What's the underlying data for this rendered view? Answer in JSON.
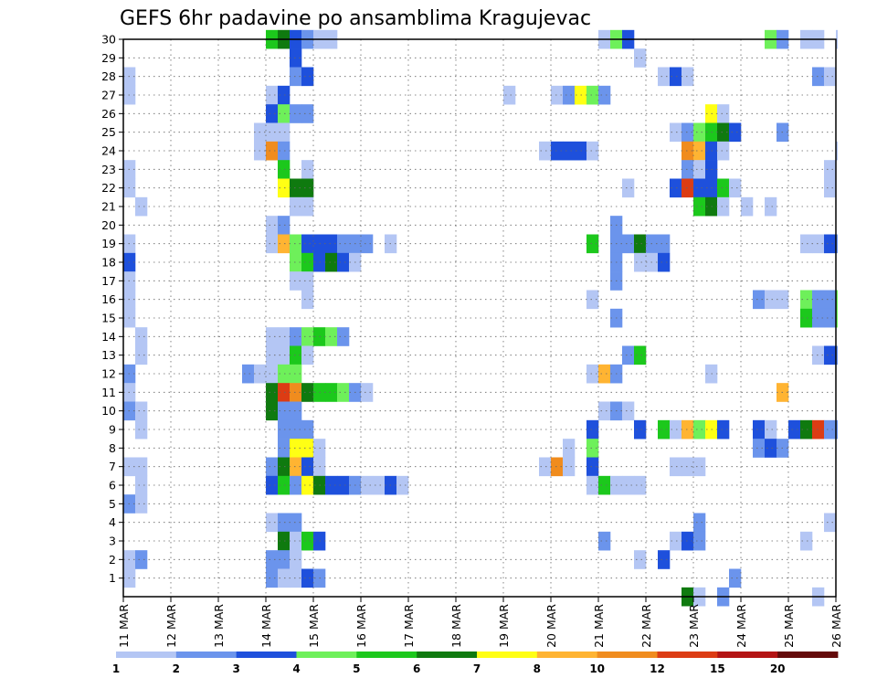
{
  "chart_data": {
    "type": "heatmap",
    "title": "GEFS 6hr padavine po ansamblima Kragujevac",
    "xlabel": "",
    "ylabel": "",
    "x_ticks": [
      "11 MAR",
      "12 MAR",
      "13 MAR",
      "14 MAR",
      "15 MAR",
      "16 MAR",
      "17 MAR",
      "18 MAR",
      "19 MAR",
      "20 MAR",
      "21 MAR",
      "22 MAR",
      "23 MAR",
      "24 MAR",
      "25 MAR",
      "26 MAR"
    ],
    "y_ticks": [
      1,
      2,
      3,
      4,
      5,
      6,
      7,
      8,
      9,
      10,
      11,
      12,
      13,
      14,
      15,
      16,
      17,
      18,
      19,
      20,
      21,
      22,
      23,
      24,
      25,
      26,
      27,
      28,
      29,
      30
    ],
    "ylim": [
      0,
      30
    ],
    "grid": true,
    "legend": {
      "placement": "bottom",
      "labels": [
        "1",
        "2",
        "3",
        "4",
        "5",
        "6",
        "7",
        "8",
        "10",
        "12",
        "15",
        "20"
      ],
      "colors": [
        "#b4c6f4",
        "#6b94ec",
        "#1e50dc",
        "#6ef05a",
        "#1cc81c",
        "#0f7a0f",
        "#ffff14",
        "#ffb432",
        "#f08c1e",
        "#dc3c14",
        "#b41414",
        "#640a0a"
      ]
    },
    "x_unit": "6-hour steps from 11 MAR 00Z",
    "cells": [
      [
        30,
        0,
        12,
        5
      ],
      [
        30,
        0,
        13,
        6
      ],
      [
        30,
        0,
        14,
        3
      ],
      [
        30,
        0,
        15,
        2
      ],
      [
        30,
        0,
        16,
        1
      ],
      [
        30,
        0,
        17,
        1
      ],
      [
        30,
        0,
        40,
        1
      ],
      [
        30,
        0,
        41,
        4
      ],
      [
        30,
        0,
        42,
        3
      ],
      [
        30,
        0,
        54,
        4
      ],
      [
        30,
        0,
        55,
        2
      ],
      [
        30,
        0,
        57,
        1
      ],
      [
        30,
        0,
        58,
        1
      ],
      [
        30,
        0,
        60,
        1
      ],
      [
        29,
        0,
        14,
        3
      ],
      [
        29,
        0,
        43,
        1
      ],
      [
        28,
        0,
        0,
        1
      ],
      [
        28,
        0,
        14,
        2
      ],
      [
        28,
        0,
        15,
        3
      ],
      [
        28,
        0,
        45,
        1
      ],
      [
        28,
        0,
        46,
        3
      ],
      [
        28,
        0,
        47,
        1
      ],
      [
        28,
        0,
        58,
        2
      ],
      [
        28,
        0,
        59,
        1
      ],
      [
        27,
        0,
        0,
        1
      ],
      [
        27,
        0,
        12,
        1
      ],
      [
        27,
        0,
        13,
        3
      ],
      [
        27,
        0,
        32,
        1
      ],
      [
        27,
        0,
        36,
        1
      ],
      [
        27,
        0,
        37,
        2
      ],
      [
        27,
        0,
        38,
        7
      ],
      [
        27,
        0,
        39,
        4
      ],
      [
        27,
        0,
        40,
        2
      ],
      [
        26,
        0,
        12,
        3
      ],
      [
        26,
        0,
        13,
        4
      ],
      [
        26,
        0,
        14,
        2
      ],
      [
        26,
        0,
        15,
        2
      ],
      [
        26,
        0,
        49,
        7
      ],
      [
        26,
        0,
        50,
        1
      ],
      [
        25,
        0,
        11,
        1
      ],
      [
        25,
        0,
        12,
        1
      ],
      [
        25,
        0,
        13,
        1
      ],
      [
        25,
        0,
        46,
        1
      ],
      [
        25,
        0,
        47,
        2
      ],
      [
        25,
        0,
        48,
        4
      ],
      [
        25,
        0,
        49,
        5
      ],
      [
        25,
        0,
        50,
        6
      ],
      [
        25,
        0,
        51,
        3
      ],
      [
        25,
        0,
        55,
        2
      ],
      [
        24,
        0,
        11,
        1
      ],
      [
        24,
        0,
        12,
        9
      ],
      [
        24,
        0,
        13,
        2
      ],
      [
        24,
        0,
        35,
        1
      ],
      [
        24,
        0,
        36,
        3
      ],
      [
        24,
        0,
        37,
        3
      ],
      [
        24,
        0,
        38,
        3
      ],
      [
        24,
        0,
        39,
        1
      ],
      [
        24,
        0,
        47,
        9
      ],
      [
        24,
        0,
        48,
        8
      ],
      [
        24,
        0,
        49,
        3
      ],
      [
        24,
        0,
        50,
        1
      ],
      [
        24,
        0,
        60,
        1
      ],
      [
        24,
        0,
        61,
        5
      ],
      [
        23,
        0,
        0,
        1
      ],
      [
        23,
        0,
        13,
        5
      ],
      [
        23,
        0,
        15,
        1
      ],
      [
        23,
        0,
        47,
        2
      ],
      [
        23,
        0,
        48,
        1
      ],
      [
        23,
        0,
        49,
        3
      ],
      [
        23,
        0,
        59,
        1
      ],
      [
        22,
        0,
        0,
        1
      ],
      [
        22,
        0,
        13,
        7
      ],
      [
        22,
        0,
        14,
        6
      ],
      [
        22,
        0,
        15,
        6
      ],
      [
        22,
        0,
        42,
        1
      ],
      [
        22,
        0,
        46,
        3
      ],
      [
        22,
        0,
        47,
        10
      ],
      [
        22,
        0,
        48,
        3
      ],
      [
        22,
        0,
        49,
        3
      ],
      [
        22,
        0,
        50,
        5
      ],
      [
        22,
        0,
        51,
        1
      ],
      [
        22,
        0,
        59,
        1
      ],
      [
        21,
        0,
        1,
        1
      ],
      [
        21,
        0,
        14,
        1
      ],
      [
        21,
        0,
        15,
        1
      ],
      [
        21,
        0,
        48,
        5
      ],
      [
        21,
        0,
        49,
        6
      ],
      [
        21,
        0,
        50,
        1
      ],
      [
        21,
        0,
        52,
        1
      ],
      [
        21,
        0,
        54,
        1
      ],
      [
        20,
        0,
        12,
        1
      ],
      [
        20,
        0,
        13,
        2
      ],
      [
        20,
        0,
        41,
        2
      ],
      [
        19,
        0,
        0,
        1
      ],
      [
        19,
        0,
        12,
        1
      ],
      [
        19,
        0,
        13,
        8
      ],
      [
        19,
        0,
        14,
        4
      ],
      [
        19,
        0,
        15,
        3
      ],
      [
        19,
        0,
        16,
        3
      ],
      [
        19,
        0,
        17,
        3
      ],
      [
        19,
        0,
        18,
        2
      ],
      [
        19,
        0,
        19,
        2
      ],
      [
        19,
        0,
        20,
        2
      ],
      [
        19,
        0,
        22,
        1
      ],
      [
        19,
        0,
        39,
        5
      ],
      [
        19,
        0,
        41,
        2
      ],
      [
        19,
        0,
        42,
        2
      ],
      [
        19,
        0,
        43,
        6
      ],
      [
        19,
        0,
        44,
        2
      ],
      [
        19,
        0,
        45,
        2
      ],
      [
        19,
        0,
        57,
        1
      ],
      [
        19,
        0,
        58,
        1
      ],
      [
        19,
        0,
        59,
        3
      ],
      [
        19,
        0,
        60,
        2
      ],
      [
        18,
        0,
        0,
        3
      ],
      [
        18,
        0,
        14,
        4
      ],
      [
        18,
        0,
        15,
        5
      ],
      [
        18,
        0,
        16,
        3
      ],
      [
        18,
        0,
        17,
        6
      ],
      [
        18,
        0,
        18,
        3
      ],
      [
        18,
        0,
        19,
        1
      ],
      [
        18,
        0,
        41,
        2
      ],
      [
        18,
        0,
        43,
        1
      ],
      [
        18,
        0,
        44,
        1
      ],
      [
        18,
        0,
        45,
        3
      ],
      [
        17,
        0,
        0,
        1
      ],
      [
        17,
        0,
        14,
        1
      ],
      [
        17,
        0,
        15,
        1
      ],
      [
        17,
        0,
        41,
        2
      ],
      [
        16,
        0,
        0,
        1
      ],
      [
        16,
        0,
        15,
        1
      ],
      [
        16,
        0,
        39,
        1
      ],
      [
        16,
        0,
        53,
        2
      ],
      [
        16,
        0,
        54,
        1
      ],
      [
        16,
        0,
        55,
        1
      ],
      [
        16,
        0,
        57,
        4
      ],
      [
        16,
        0,
        58,
        2
      ],
      [
        16,
        0,
        59,
        2
      ],
      [
        16,
        0,
        60,
        4
      ],
      [
        16,
        0,
        61,
        5
      ],
      [
        15,
        0,
        0,
        1
      ],
      [
        15,
        0,
        41,
        2
      ],
      [
        15,
        0,
        57,
        5
      ],
      [
        15,
        0,
        58,
        2
      ],
      [
        15,
        0,
        59,
        2
      ],
      [
        15,
        0,
        60,
        4
      ],
      [
        15,
        0,
        61,
        1
      ],
      [
        14,
        0,
        1,
        1
      ],
      [
        14,
        0,
        12,
        1
      ],
      [
        14,
        0,
        13,
        1
      ],
      [
        14,
        0,
        14,
        2
      ],
      [
        14,
        0,
        15,
        4
      ],
      [
        14,
        0,
        16,
        5
      ],
      [
        14,
        0,
        17,
        4
      ],
      [
        14,
        0,
        18,
        2
      ],
      [
        13,
        0,
        1,
        1
      ],
      [
        13,
        0,
        12,
        1
      ],
      [
        13,
        0,
        13,
        1
      ],
      [
        13,
        0,
        14,
        5
      ],
      [
        13,
        0,
        15,
        1
      ],
      [
        13,
        0,
        42,
        2
      ],
      [
        13,
        0,
        43,
        5
      ],
      [
        13,
        0,
        58,
        1
      ],
      [
        13,
        0,
        59,
        3
      ],
      [
        13,
        0,
        60,
        2
      ],
      [
        12,
        0,
        0,
        2
      ],
      [
        12,
        0,
        10,
        2
      ],
      [
        12,
        0,
        11,
        1
      ],
      [
        12,
        0,
        12,
        1
      ],
      [
        12,
        0,
        13,
        4
      ],
      [
        12,
        0,
        14,
        4
      ],
      [
        12,
        0,
        39,
        1
      ],
      [
        12,
        0,
        40,
        8
      ],
      [
        12,
        0,
        41,
        2
      ],
      [
        12,
        0,
        49,
        1
      ],
      [
        11,
        0,
        0,
        1
      ],
      [
        11,
        0,
        12,
        6
      ],
      [
        11,
        0,
        13,
        10
      ],
      [
        11,
        0,
        14,
        9
      ],
      [
        11,
        0,
        15,
        6
      ],
      [
        11,
        0,
        16,
        5
      ],
      [
        11,
        0,
        17,
        5
      ],
      [
        11,
        0,
        18,
        4
      ],
      [
        11,
        0,
        19,
        2
      ],
      [
        11,
        0,
        20,
        1
      ],
      [
        11,
        0,
        55,
        8
      ],
      [
        10,
        0,
        0,
        2
      ],
      [
        10,
        0,
        1,
        1
      ],
      [
        10,
        0,
        12,
        6
      ],
      [
        10,
        0,
        13,
        2
      ],
      [
        10,
        0,
        14,
        2
      ],
      [
        10,
        0,
        40,
        1
      ],
      [
        10,
        0,
        41,
        2
      ],
      [
        10,
        0,
        42,
        1
      ],
      [
        10,
        0,
        61,
        1
      ],
      [
        9,
        0,
        1,
        1
      ],
      [
        9,
        0,
        13,
        2
      ],
      [
        9,
        0,
        14,
        2
      ],
      [
        9,
        0,
        15,
        2
      ],
      [
        9,
        0,
        39,
        3
      ],
      [
        9,
        0,
        43,
        3
      ],
      [
        9,
        0,
        45,
        5
      ],
      [
        9,
        0,
        46,
        1
      ],
      [
        9,
        0,
        47,
        8
      ],
      [
        9,
        0,
        48,
        4
      ],
      [
        9,
        0,
        49,
        7
      ],
      [
        9,
        0,
        50,
        3
      ],
      [
        9,
        0,
        53,
        3
      ],
      [
        9,
        0,
        54,
        1
      ],
      [
        9,
        0,
        56,
        3
      ],
      [
        9,
        0,
        57,
        6
      ],
      [
        9,
        0,
        58,
        10
      ],
      [
        9,
        0,
        59,
        2
      ],
      [
        9,
        0,
        60,
        2
      ],
      [
        8,
        0,
        13,
        2
      ],
      [
        8,
        0,
        14,
        7
      ],
      [
        8,
        0,
        15,
        7
      ],
      [
        8,
        0,
        16,
        1
      ],
      [
        8,
        0,
        37,
        1
      ],
      [
        8,
        0,
        39,
        4
      ],
      [
        8,
        0,
        53,
        2
      ],
      [
        8,
        0,
        54,
        3
      ],
      [
        8,
        0,
        55,
        2
      ],
      [
        8,
        0,
        61,
        2
      ],
      [
        7,
        0,
        0,
        1
      ],
      [
        7,
        0,
        1,
        1
      ],
      [
        7,
        0,
        12,
        2
      ],
      [
        7,
        0,
        13,
        6
      ],
      [
        7,
        0,
        14,
        8
      ],
      [
        7,
        0,
        15,
        3
      ],
      [
        7,
        0,
        16,
        1
      ],
      [
        7,
        0,
        35,
        1
      ],
      [
        7,
        0,
        36,
        9
      ],
      [
        7,
        0,
        37,
        1
      ],
      [
        7,
        0,
        39,
        3
      ],
      [
        7,
        0,
        46,
        1
      ],
      [
        7,
        0,
        47,
        1
      ],
      [
        7,
        0,
        48,
        1
      ],
      [
        6,
        0,
        1,
        1
      ],
      [
        6,
        0,
        12,
        3
      ],
      [
        6,
        0,
        13,
        5
      ],
      [
        6,
        0,
        14,
        2
      ],
      [
        6,
        0,
        15,
        7
      ],
      [
        6,
        0,
        16,
        6
      ],
      [
        6,
        0,
        17,
        3
      ],
      [
        6,
        0,
        18,
        3
      ],
      [
        6,
        0,
        19,
        2
      ],
      [
        6,
        0,
        20,
        1
      ],
      [
        6,
        0,
        21,
        1
      ],
      [
        6,
        0,
        22,
        3
      ],
      [
        6,
        0,
        23,
        1
      ],
      [
        6,
        0,
        39,
        1
      ],
      [
        6,
        0,
        40,
        5
      ],
      [
        6,
        0,
        41,
        1
      ],
      [
        6,
        0,
        42,
        1
      ],
      [
        6,
        0,
        43,
        1
      ],
      [
        5,
        0,
        0,
        2
      ],
      [
        5,
        0,
        1,
        1
      ],
      [
        4,
        0,
        12,
        1
      ],
      [
        4,
        0,
        13,
        2
      ],
      [
        4,
        0,
        14,
        2
      ],
      [
        4,
        0,
        48,
        2
      ],
      [
        4,
        0,
        59,
        1
      ],
      [
        3,
        0,
        13,
        6
      ],
      [
        3,
        0,
        14,
        1
      ],
      [
        3,
        0,
        15,
        5
      ],
      [
        3,
        0,
        16,
        3
      ],
      [
        3,
        0,
        40,
        2
      ],
      [
        3,
        0,
        46,
        1
      ],
      [
        3,
        0,
        47,
        3
      ],
      [
        3,
        0,
        48,
        2
      ],
      [
        3,
        0,
        57,
        1
      ],
      [
        2,
        0,
        0,
        1
      ],
      [
        2,
        0,
        1,
        2
      ],
      [
        2,
        0,
        12,
        2
      ],
      [
        2,
        0,
        13,
        2
      ],
      [
        2,
        0,
        14,
        1
      ],
      [
        2,
        0,
        43,
        1
      ],
      [
        2,
        0,
        45,
        3
      ],
      [
        1,
        0,
        0,
        1
      ],
      [
        1,
        0,
        12,
        2
      ],
      [
        1,
        0,
        13,
        1
      ],
      [
        1,
        0,
        14,
        1
      ],
      [
        1,
        0,
        15,
        3
      ],
      [
        1,
        0,
        16,
        2
      ],
      [
        1,
        0,
        51,
        2
      ],
      [
        0,
        0,
        47,
        6
      ],
      [
        0,
        0,
        48,
        1
      ],
      [
        0,
        0,
        50,
        2
      ],
      [
        0,
        0,
        58,
        1
      ]
    ]
  }
}
